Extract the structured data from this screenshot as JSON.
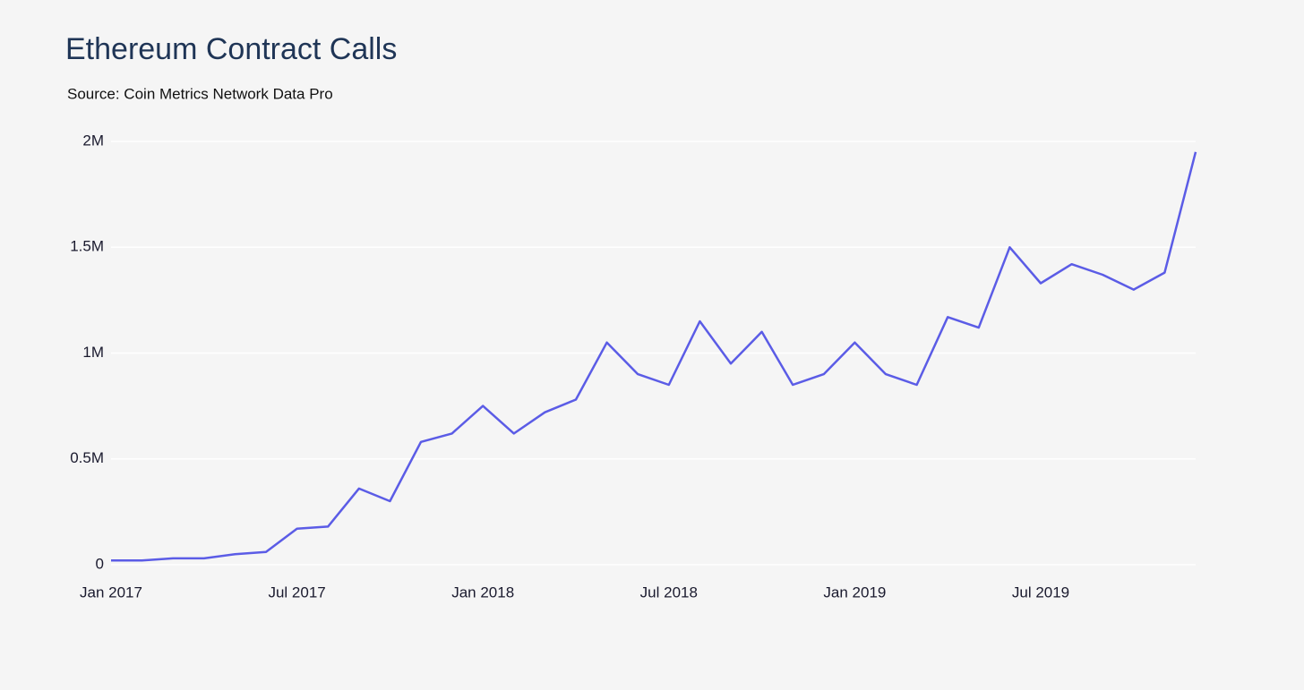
{
  "chart_data": {
    "type": "line",
    "title": "Ethereum Contract Calls",
    "subtitle": "Source: Coin Metrics Network Data Pro",
    "x": [
      "2017-01",
      "2017-02",
      "2017-03",
      "2017-04",
      "2017-05",
      "2017-06",
      "2017-07",
      "2017-08",
      "2017-09",
      "2017-10",
      "2017-11",
      "2017-12",
      "2018-01",
      "2018-02",
      "2018-03",
      "2018-04",
      "2018-05",
      "2018-06",
      "2018-07",
      "2018-08",
      "2018-09",
      "2018-10",
      "2018-11",
      "2018-12",
      "2019-01",
      "2019-02",
      "2019-03",
      "2019-04",
      "2019-05",
      "2019-06",
      "2019-07",
      "2019-08",
      "2019-09",
      "2019-10",
      "2019-11",
      "2019-12"
    ],
    "series": [
      {
        "name": "Contract Calls",
        "color": "#5b5ce6",
        "values": [
          20000,
          20000,
          30000,
          30000,
          50000,
          60000,
          170000,
          180000,
          360000,
          300000,
          580000,
          620000,
          750000,
          620000,
          720000,
          780000,
          1050000,
          900000,
          850000,
          1150000,
          950000,
          1100000,
          850000,
          900000,
          1050000,
          900000,
          850000,
          1170000,
          1120000,
          1500000,
          1330000,
          1420000,
          1370000,
          1300000,
          1380000,
          1950000
        ]
      }
    ],
    "xlim": [
      "2017-01",
      "2019-12"
    ],
    "xticks": [
      {
        "value": "2017-01",
        "label": "Jan 2017"
      },
      {
        "value": "2017-07",
        "label": "Jul 2017"
      },
      {
        "value": "2018-01",
        "label": "Jan 2018"
      },
      {
        "value": "2018-07",
        "label": "Jul 2018"
      },
      {
        "value": "2019-01",
        "label": "Jan 2019"
      },
      {
        "value": "2019-07",
        "label": "Jul 2019"
      }
    ],
    "ylim": [
      0,
      2000000
    ],
    "yticks": [
      0,
      {
        "value": 500000,
        "label": "0.5M"
      },
      {
        "value": 1000000,
        "label": "1M"
      },
      {
        "value": 1500000,
        "label": "1.5M"
      },
      {
        "value": 2000000,
        "label": "2M"
      }
    ],
    "grid": true
  }
}
